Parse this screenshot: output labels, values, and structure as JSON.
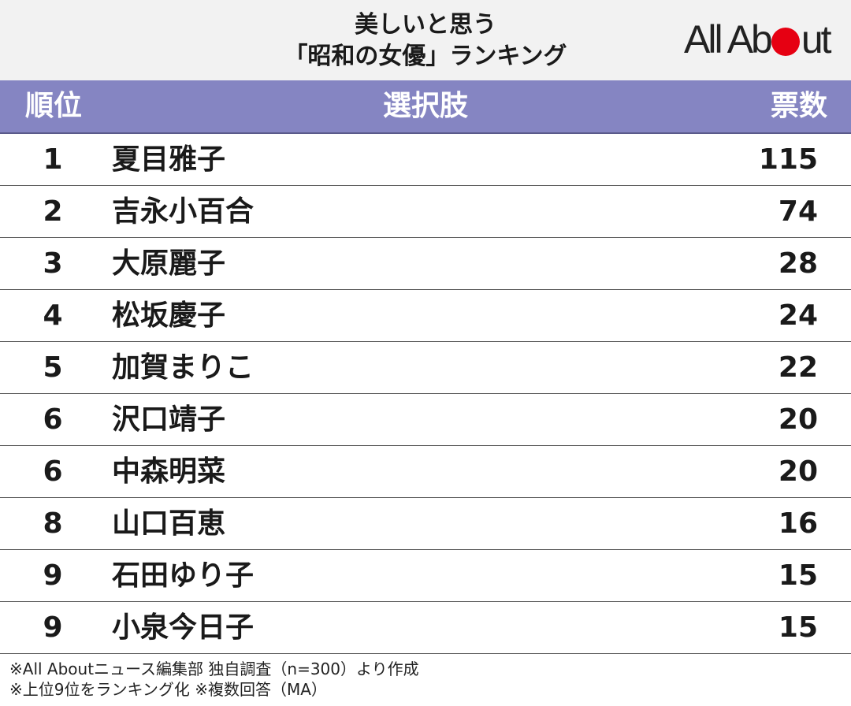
{
  "title": {
    "line1": "美しいと思う",
    "line2": "「昭和の女優」ランキング"
  },
  "logo": {
    "left": "All Ab",
    "right": "ut"
  },
  "table": {
    "headers": {
      "rank": "順位",
      "choice": "選択肢",
      "votes": "票数"
    }
  },
  "chart_data": {
    "type": "table",
    "columns": [
      "順位",
      "選択肢",
      "票数"
    ],
    "rows": [
      {
        "rank": "1",
        "name": "夏目雅子",
        "votes": 115
      },
      {
        "rank": "2",
        "name": "吉永小百合",
        "votes": 74
      },
      {
        "rank": "3",
        "name": "大原麗子",
        "votes": 28
      },
      {
        "rank": "4",
        "name": "松坂慶子",
        "votes": 24
      },
      {
        "rank": "5",
        "name": "加賀まりこ",
        "votes": 22
      },
      {
        "rank": "6",
        "name": "沢口靖子",
        "votes": 20
      },
      {
        "rank": "6",
        "name": "中森明菜",
        "votes": 20
      },
      {
        "rank": "8",
        "name": "山口百恵",
        "votes": 16
      },
      {
        "rank": "9",
        "name": "石田ゆり子",
        "votes": 15
      },
      {
        "rank": "9",
        "name": "小泉今日子",
        "votes": 15
      }
    ]
  },
  "footnotes": [
    "※All Aboutニュース編集部 独自調査（n=300）より作成",
    "※上位9位をランキング化 ※複数回答（MA）"
  ],
  "colors": {
    "header_bg": "#8585c2",
    "logo_dot": "#e60012",
    "title_bg": "#f2f2f2"
  }
}
